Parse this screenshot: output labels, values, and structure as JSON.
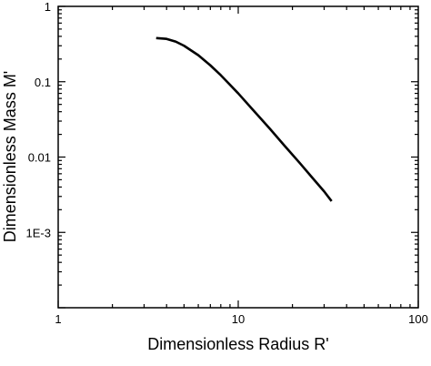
{
  "chart_data": {
    "type": "line",
    "title": "",
    "xlabel": "Dimensionless Radius R'",
    "ylabel": "Dimensionless Mass M'",
    "x_scale": "log",
    "y_scale": "log",
    "xlim": [
      1,
      100
    ],
    "ylim": [
      0.0001,
      1
    ],
    "grid": false,
    "x_ticks": [
      {
        "value": 1,
        "label": "1"
      },
      {
        "value": 10,
        "label": "10"
      },
      {
        "value": 100,
        "label": "100"
      }
    ],
    "y_ticks": [
      {
        "value": 1,
        "label": "1"
      },
      {
        "value": 0.1,
        "label": "0.1"
      },
      {
        "value": 0.01,
        "label": "0.01"
      },
      {
        "value": 0.001,
        "label": "1E-3"
      }
    ],
    "series": [
      {
        "color": "#000000",
        "x": [
          3.5,
          4.0,
          4.5,
          5.0,
          6.0,
          7.0,
          8.0,
          10.0,
          12.0,
          15.0,
          18.0,
          22.0,
          26.0,
          30.0,
          33.0
        ],
        "y": [
          0.38,
          0.37,
          0.34,
          0.3,
          0.225,
          0.165,
          0.122,
          0.07,
          0.043,
          0.0237,
          0.0143,
          0.0083,
          0.0052,
          0.0035,
          0.0026
        ]
      }
    ]
  }
}
